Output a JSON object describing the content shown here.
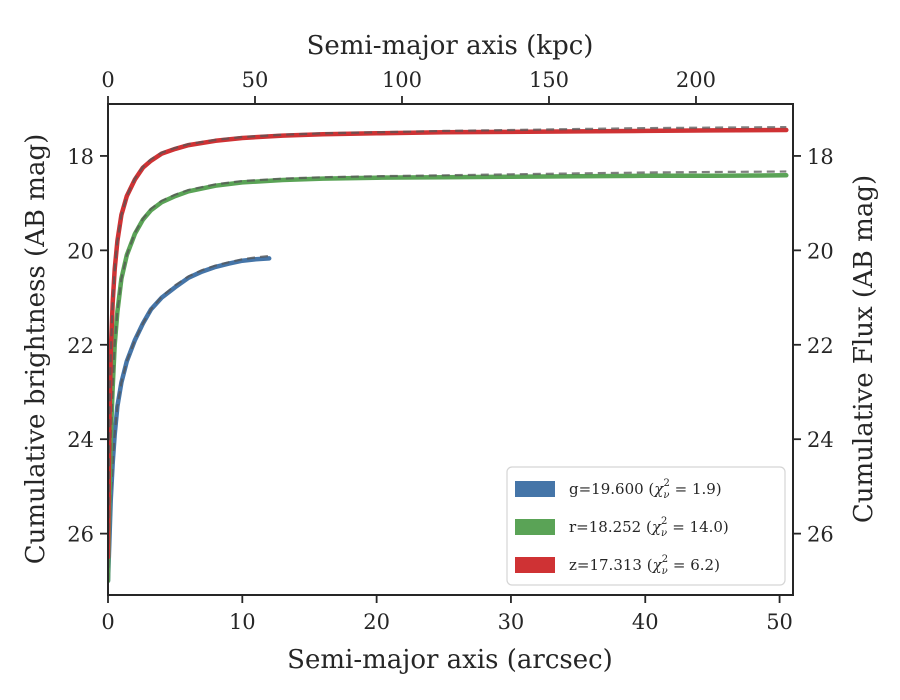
{
  "chart_data": {
    "type": "line",
    "title": "",
    "xlabel": "Semi-major axis (arcsec)",
    "ylabel": "Cumulative brightness (AB mag)",
    "top_xlabel": "Semi-major axis (kpc)",
    "right_ylabel": "Cumulative Flux (AB mag)",
    "xlim": [
      0,
      51
    ],
    "ylim": [
      27.3,
      16.9
    ],
    "top_xlim": [
      0,
      233
    ],
    "y_inverted": true,
    "x_ticks": [
      "0",
      "10",
      "20",
      "30",
      "40",
      "50"
    ],
    "y_ticks": [
      "18",
      "20",
      "22",
      "24",
      "26"
    ],
    "top_x_ticks": [
      "0",
      "50",
      "100",
      "150",
      "200"
    ],
    "grid": false,
    "legend_position": "lower-right",
    "series": [
      {
        "band": "g",
        "label_main": "g=19.600 (",
        "label_math": "χ",
        "label_sub": "ν",
        "label_sup": "2",
        "label_tail": " = 1.9)",
        "color": "#4575a8",
        "x": [
          0,
          0.1,
          0.2,
          0.35,
          0.5,
          0.7,
          1.0,
          1.4,
          2.0,
          2.6,
          3.2,
          4.0,
          5.0,
          6.0,
          7.0,
          8.0,
          9.0,
          10.0,
          11.0,
          12.0
        ],
        "y": [
          27.0,
          26.2,
          25.3,
          24.5,
          23.9,
          23.3,
          22.8,
          22.35,
          21.9,
          21.55,
          21.25,
          21.0,
          20.78,
          20.58,
          20.45,
          20.35,
          20.28,
          20.22,
          20.19,
          20.17
        ],
        "fit_x": [
          0,
          0.1,
          0.2,
          0.35,
          0.5,
          0.7,
          1.0,
          1.4,
          2.0,
          2.6,
          3.2,
          4.0,
          5.0,
          6.0,
          7.0,
          8.0,
          9.0,
          10.0,
          11.0,
          12.0
        ],
        "fit_y": [
          27.0,
          26.2,
          25.3,
          24.5,
          23.9,
          23.3,
          22.8,
          22.35,
          21.9,
          21.55,
          21.25,
          20.98,
          20.74,
          20.55,
          20.42,
          20.32,
          20.25,
          20.19,
          20.15,
          20.12
        ]
      },
      {
        "band": "r",
        "label_main": "r=18.252 (",
        "label_math": "χ",
        "label_sub": "ν",
        "label_sup": "2",
        "label_tail": " = 14.0)",
        "color": "#5aa356",
        "x": [
          0,
          0.1,
          0.2,
          0.35,
          0.5,
          0.7,
          1.0,
          1.4,
          2.0,
          2.6,
          3.2,
          4.0,
          5.0,
          6.0,
          8.0,
          10.0,
          13.0,
          16.0,
          20.0,
          25.0,
          30.0,
          35.0,
          40.0,
          45.0,
          50.5
        ],
        "y": [
          27.0,
          25.3,
          24.0,
          22.9,
          22.0,
          21.3,
          20.6,
          20.1,
          19.65,
          19.35,
          19.15,
          18.98,
          18.85,
          18.75,
          18.63,
          18.56,
          18.51,
          18.48,
          18.46,
          18.45,
          18.44,
          18.43,
          18.42,
          18.42,
          18.41
        ],
        "fit_x": [
          0,
          0.1,
          0.2,
          0.35,
          0.5,
          0.7,
          1.0,
          1.4,
          2.0,
          2.6,
          3.2,
          4.0,
          5.0,
          6.0,
          8.0,
          10.0,
          13.0,
          16.0,
          20.0,
          25.0,
          30.0,
          35.0,
          40.0,
          45.0,
          50.5
        ],
        "fit_y": [
          27.0,
          25.3,
          24.0,
          22.9,
          22.0,
          21.3,
          20.6,
          20.1,
          19.63,
          19.33,
          19.12,
          18.95,
          18.82,
          18.72,
          18.6,
          18.53,
          18.48,
          18.45,
          18.43,
          18.41,
          18.39,
          18.37,
          18.35,
          18.34,
          18.33
        ]
      },
      {
        "band": "z",
        "label_main": "z=17.313 (",
        "label_math": "χ",
        "label_sub": "ν",
        "label_sup": "2",
        "label_tail": " = 6.2)",
        "color": "#cf3234",
        "x": [
          0,
          0.1,
          0.2,
          0.35,
          0.5,
          0.7,
          1.0,
          1.4,
          2.0,
          2.6,
          3.2,
          4.0,
          5.0,
          6.0,
          8.0,
          10.0,
          13.0,
          16.0,
          20.0,
          25.0,
          30.0,
          35.0,
          40.0,
          45.0,
          50.5
        ],
        "y": [
          26.5,
          23.7,
          22.2,
          21.1,
          20.4,
          19.8,
          19.25,
          18.85,
          18.5,
          18.25,
          18.1,
          17.95,
          17.85,
          17.77,
          17.68,
          17.62,
          17.57,
          17.54,
          17.52,
          17.5,
          17.49,
          17.48,
          17.47,
          17.46,
          17.45
        ],
        "fit_x": [
          0,
          0.1,
          0.2,
          0.35,
          0.5,
          0.7,
          1.0,
          1.4,
          2.0,
          2.6,
          3.2,
          4.0,
          5.0,
          6.0,
          8.0,
          10.0,
          13.0,
          16.0,
          20.0,
          25.0,
          30.0,
          35.0,
          40.0,
          45.0,
          50.5
        ],
        "fit_y": [
          26.5,
          23.7,
          22.2,
          21.1,
          20.4,
          19.8,
          19.25,
          18.85,
          18.48,
          18.23,
          18.07,
          17.93,
          17.83,
          17.75,
          17.66,
          17.6,
          17.55,
          17.52,
          17.5,
          17.47,
          17.45,
          17.43,
          17.41,
          17.4,
          17.39
        ]
      }
    ]
  }
}
